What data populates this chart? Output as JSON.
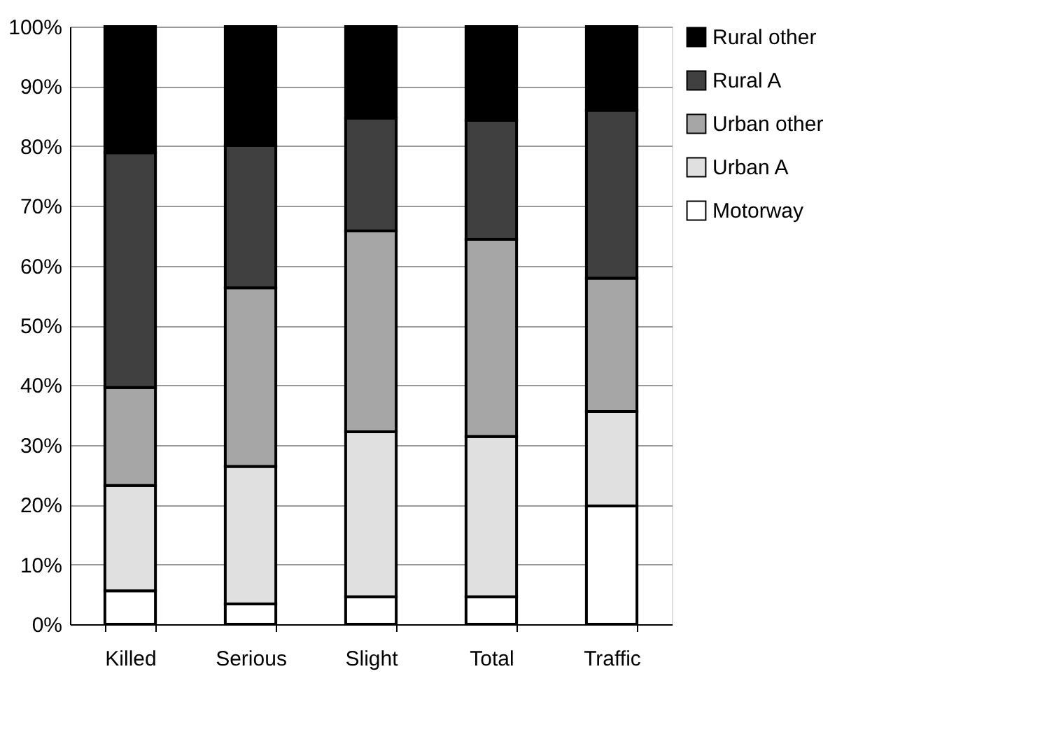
{
  "chart_data": {
    "type": "bar",
    "stacked": true,
    "categories": [
      "Killed",
      "Serious",
      "Slight",
      "Total",
      "Traffic"
    ],
    "series": [
      {
        "name": "Motorway",
        "color": "#ffffff",
        "values": [
          5.6,
          3.4,
          4.6,
          4.6,
          19.8
        ]
      },
      {
        "name": "Urban A",
        "color": "#e0e0e0",
        "values": [
          17.6,
          23.0,
          27.6,
          26.8,
          15.8
        ]
      },
      {
        "name": "Urban other",
        "color": "#a6a6a6",
        "values": [
          16.4,
          29.9,
          33.6,
          33.0,
          22.3
        ]
      },
      {
        "name": "Rural A",
        "color": "#404040",
        "values": [
          39.3,
          23.8,
          18.9,
          19.9,
          28.1
        ]
      },
      {
        "name": "Rural other",
        "color": "#000000",
        "values": [
          21.1,
          19.9,
          15.3,
          15.7,
          14.0
        ]
      }
    ],
    "ylim": [
      0,
      100
    ],
    "yticks": [
      {
        "value": 0,
        "label": "0%"
      },
      {
        "value": 10,
        "label": "10%"
      },
      {
        "value": 20,
        "label": "20%"
      },
      {
        "value": 30,
        "label": "30%"
      },
      {
        "value": 40,
        "label": "40%"
      },
      {
        "value": 50,
        "label": "50%"
      },
      {
        "value": 60,
        "label": "60%"
      },
      {
        "value": 70,
        "label": "70%"
      },
      {
        "value": 80,
        "label": "80%"
      },
      {
        "value": 90,
        "label": "90%"
      },
      {
        "value": 100,
        "label": "100%"
      }
    ],
    "grid": "y",
    "legend": "right"
  }
}
